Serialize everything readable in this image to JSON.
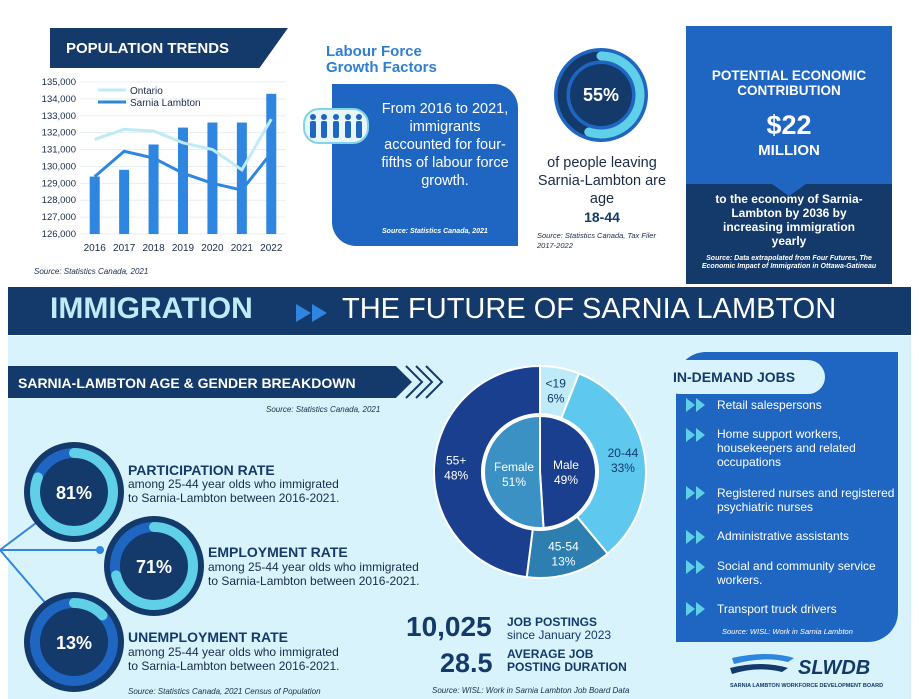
{
  "population": {
    "title": "POPULATION TRENDS",
    "legend_ontario": "Ontario",
    "legend_sarnia": "Sarnia Lambton",
    "source": "Source: Statistics Canada, 2021"
  },
  "chart_data": {
    "type": "bar",
    "title": "POPULATION TRENDS",
    "categories": [
      "2016",
      "2017",
      "2018",
      "2019",
      "2020",
      "2021",
      "2022"
    ],
    "y_ticks": [
      "126,000",
      "127,000",
      "128,000",
      "129,000",
      "130,000",
      "131,000",
      "132,000",
      "133,000",
      "134,000",
      "135,000"
    ],
    "ylim": [
      126000,
      135000
    ],
    "series": [
      {
        "name": "Sarnia Lambton",
        "values": [
          129400,
          129800,
          131300,
          132300,
          132600,
          132600,
          134300
        ]
      },
      {
        "name": "Ontario",
        "values": [
          131600,
          132200,
          132100,
          131400,
          131000,
          129800,
          132800
        ]
      },
      {
        "name": "Sarnia Lambton",
        "values": [
          129400,
          130900,
          130500,
          129600,
          129000,
          128600,
          130800
        ]
      }
    ]
  },
  "labour": {
    "title_line1": "Labour Force",
    "title_line2": "Growth Factors",
    "text": "From 2016 to 2021, immigrants accounted for four-fifths of labour force growth.",
    "source": "Source: Statistics Canada, 2021",
    "icon": "people-group-icon"
  },
  "leaving": {
    "percent": "55%",
    "fraction": 0.55,
    "text": "of people leaving Sarnia-Lambton are age",
    "age": "18-44",
    "source": "Source: Statistics Canada, Tax Filer 2017-2022"
  },
  "economic": {
    "title": "POTENTIAL ECONOMIC CONTRIBUTION",
    "amount": "$22",
    "unit": "MILLION",
    "text": "to the economy of Sarnia-Lambton by 2036 by increasing immigration yearly",
    "source": "Source: Data extrapolated from Four Futures, The Economic Impact of Immigration in Ottawa-Gatineau"
  },
  "banner": {
    "left": "IMMIGRATION",
    "right": "THE FUTURE OF SARNIA LAMBTON"
  },
  "age_gender": {
    "title": "SARNIA-LAMBTON AGE & GENDER BREAKDOWN",
    "source": "Source: Statistics Canada, 2021",
    "outer": [
      {
        "label": "<19",
        "pct": "6%",
        "value": 6
      },
      {
        "label": "20-44",
        "pct": "33%",
        "value": 33
      },
      {
        "label": "45-54",
        "pct": "13%",
        "value": 13
      },
      {
        "label": "55+",
        "pct": "48%",
        "value": 48
      }
    ],
    "inner": [
      {
        "label": "Male",
        "pct": "49%",
        "value": 49
      },
      {
        "label": "Female",
        "pct": "51%",
        "value": 51
      }
    ]
  },
  "rates": [
    {
      "value": "81%",
      "fraction": 0.81,
      "title": "PARTICIPATION RATE",
      "desc1": "among 25-44 year olds who immigrated",
      "desc2": "to Sarnia-Lambton between 2016-2021."
    },
    {
      "value": "71%",
      "fraction": 0.71,
      "title": "EMPLOYMENT RATE",
      "desc1": "among 25-44 year olds who immigrated",
      "desc2": "to Sarnia-Lambton between 2016-2021."
    },
    {
      "value": "13%",
      "fraction": 0.13,
      "title": "UNEMPLOYMENT RATE",
      "desc1": "among 25-44 year olds who immigrated",
      "desc2": "to Sarnia-Lambton between 2016-2021."
    }
  ],
  "rates_source": "Source: Statistics Canada, 2021 Census of Population",
  "jobs": {
    "count": "10,025",
    "count_label1": "JOB POSTINGS",
    "count_label2": "since January 2023",
    "duration": "28.5",
    "duration_label1": "AVERAGE JOB",
    "duration_label2": "POSTING DURATION",
    "source": "Source: WISL: Work in Sarnia Lambton Job Board Data"
  },
  "in_demand": {
    "title": "IN-DEMAND JOBS",
    "items": [
      "Retail salespersons",
      "Home support workers, housekeepers and related occupations",
      "Registered nurses and registered psychiatric nurses",
      "Administrative assistants",
      "Social and community service workers.",
      "Transport truck drivers"
    ],
    "source": "Source: WISL: Work in Sarnia Lambton"
  },
  "logo": {
    "name": "SLWDB",
    "tagline": "SARNIA LAMBTON WORKFORCE DEVELOPMENT BOARD"
  }
}
